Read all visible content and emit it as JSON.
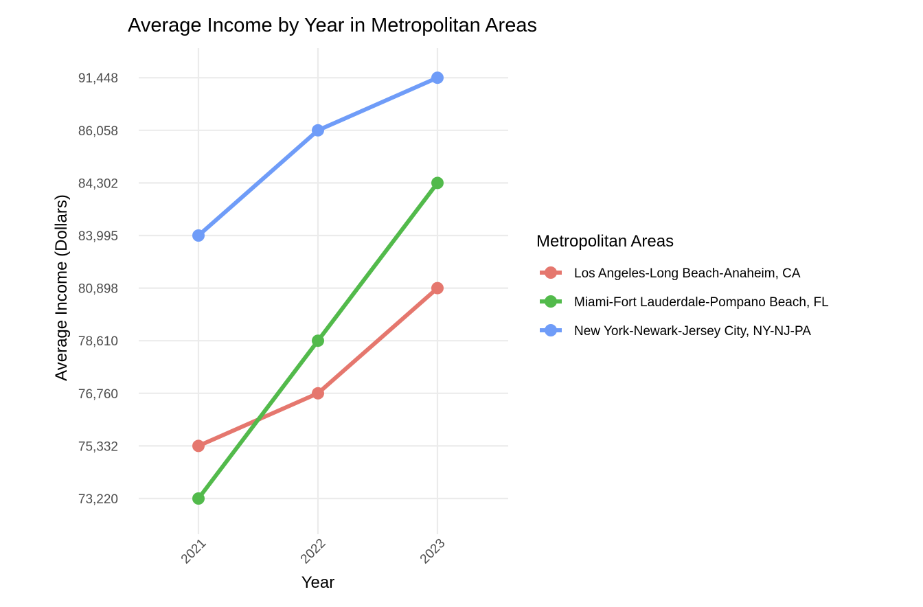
{
  "chart_data": {
    "type": "line",
    "title": "Average Income by Year in Metropolitan Areas",
    "xlabel": "Year",
    "ylabel": "Average Income (Dollars)",
    "x": [
      "2021",
      "2022",
      "2023"
    ],
    "y_axis_scale": "categorical",
    "y_ticks": [
      "73,220",
      "75,332",
      "76,760",
      "78,610",
      "80,898",
      "83,995",
      "84,302",
      "86,058",
      "91,448"
    ],
    "grid": true,
    "legend": {
      "title": "Metropolitan Areas",
      "position": "right"
    },
    "series": [
      {
        "name": "Los Angeles-Long Beach-Anaheim, CA",
        "color": "#E5776E",
        "values": [
          "75,332",
          "76,760",
          "80,898"
        ]
      },
      {
        "name": "Miami-Fort Lauderdale-Pompano Beach, FL",
        "color": "#52BA4B",
        "values": [
          "73,220",
          "78,610",
          "84,302"
        ]
      },
      {
        "name": "New York-Newark-Jersey City, NY-NJ-PA",
        "color": "#6F9CF8",
        "values": [
          "83,995",
          "86,058",
          "91,448"
        ]
      }
    ]
  }
}
